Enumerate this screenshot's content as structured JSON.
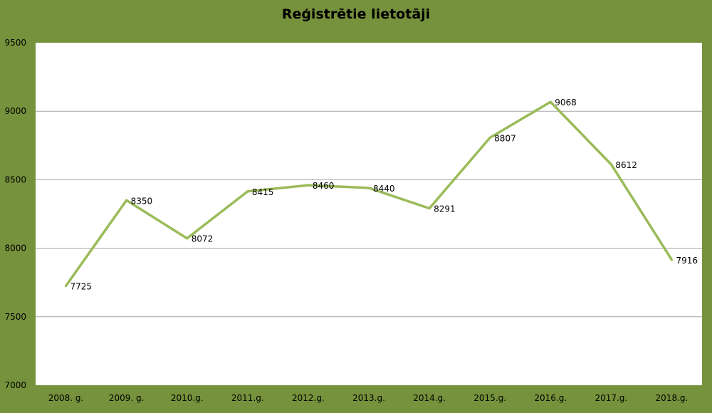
{
  "chart_data": {
    "type": "line",
    "title": "Reģistrētie lietotāji",
    "categories": [
      "2008. g.",
      "2009. g.",
      "2010.g.",
      "2011.g.",
      "2012.g.",
      "2013.g.",
      "2014.g.",
      "2015.g.",
      "2016.g.",
      "2017.g.",
      "2018.g."
    ],
    "series": [
      {
        "values": [
          7725,
          8350,
          8072,
          8415,
          8460,
          8440,
          8291,
          8807,
          9068,
          8612,
          7916
        ]
      }
    ],
    "ylim": [
      7000,
      9500
    ],
    "yticks": [
      7000,
      7500,
      8000,
      8500,
      9000,
      9500
    ],
    "grid": true,
    "data_labels": true
  },
  "colors": {
    "background": "#76923c",
    "plot_area": "#ffffff",
    "line": "#9bbb59",
    "grid": "#a6a6a6"
  }
}
